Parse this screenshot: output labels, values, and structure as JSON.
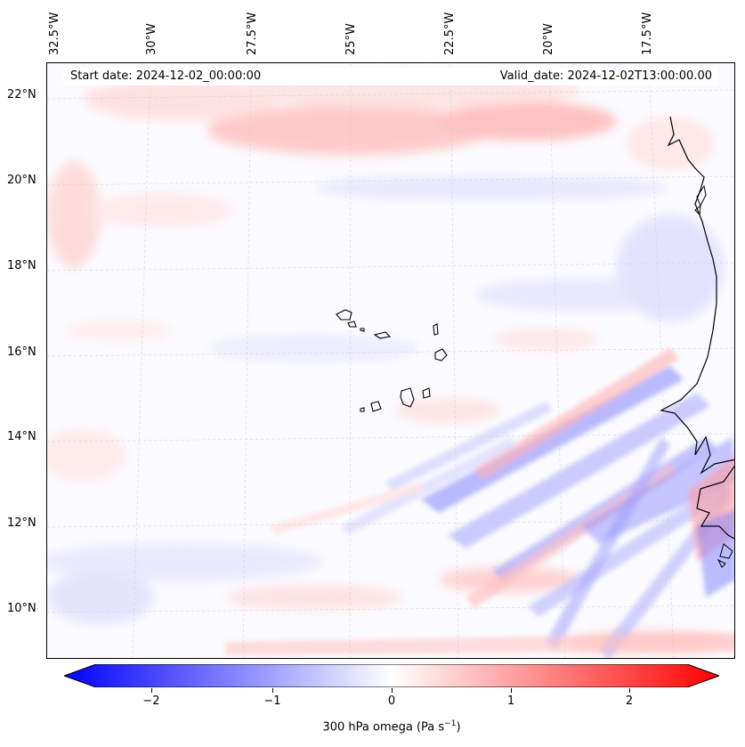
{
  "header": {
    "start_date": "Start date: 2024-12-02_00:00:00",
    "valid_date": "Valid_date: 2024-12-02T13:00:00.00"
  },
  "map": {
    "longitude_labels": [
      "32.5°W",
      "30°W",
      "27.5°W",
      "25°W",
      "22.5°W",
      "20°W",
      "17.5°W"
    ],
    "latitude_labels": [
      "22°N",
      "20°N",
      "18°N",
      "16°N",
      "14°N",
      "12°N",
      "10°N"
    ],
    "field": "300 hPa omega",
    "features": [
      "coastline-west-africa",
      "cape-verde-islands"
    ]
  },
  "colorbar": {
    "tick_labels": [
      "−2",
      "−1",
      "0",
      "1",
      "2"
    ],
    "range": [
      -2.6,
      2.6
    ],
    "title": "300 hPa omega (Pa s",
    "title_exponent": "−1",
    "title_suffix": ")",
    "colormap": [
      "#0000ff",
      "#ffffff",
      "#ff0000"
    ]
  }
}
